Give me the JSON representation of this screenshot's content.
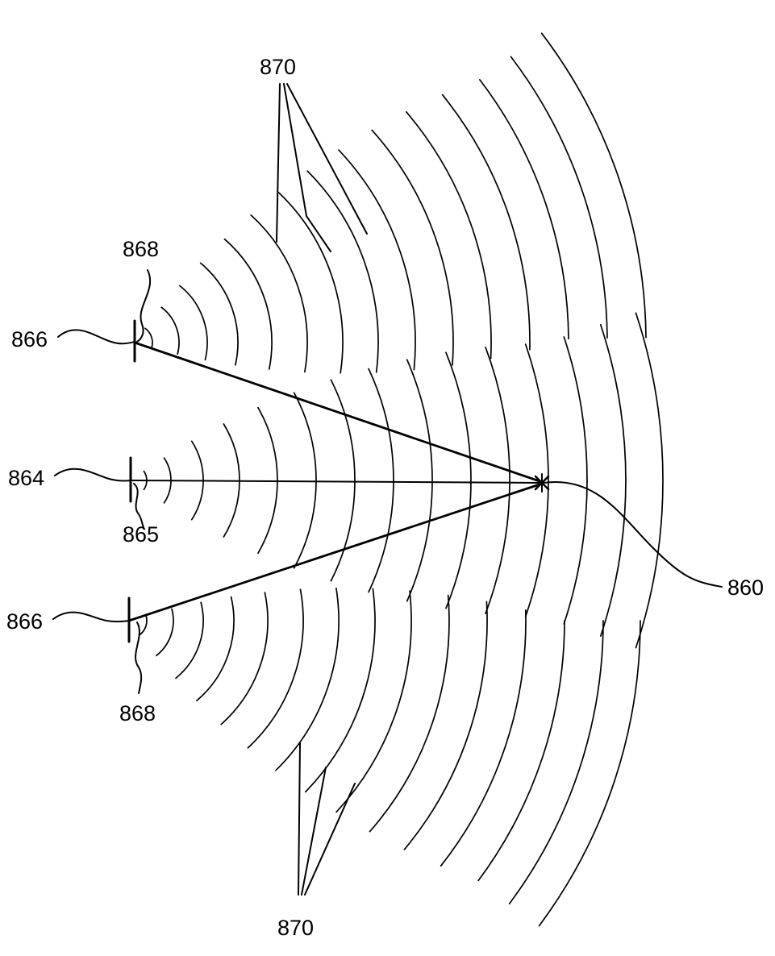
{
  "labels": {
    "focus": "860",
    "center_transducer": "864",
    "center_element": "865",
    "upper_transducer": "866",
    "lower_transducer": "866",
    "upper_element": "868",
    "lower_element": "868",
    "wavefronts_top": "870",
    "wavefronts_bottom": "870"
  },
  "colors": {
    "ink": "#000000",
    "background": "#ffffff"
  }
}
